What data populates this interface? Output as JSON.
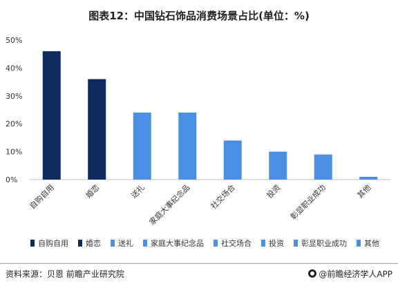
{
  "title": "图表12：中国钻石饰品消费场景占比(单位：%)",
  "colors": {
    "dark": "#0d2b5e",
    "light": "#4a8fe3",
    "axis": "#bfbfbf",
    "text": "#333333"
  },
  "chart_data": {
    "type": "bar",
    "categories": [
      "自购自用",
      "婚恋",
      "送礼",
      "家庭大事纪念品",
      "社交场合",
      "投资",
      "彰显职业成功",
      "其他"
    ],
    "values": [
      46,
      36,
      24,
      24,
      14,
      10,
      9,
      1
    ],
    "series_colors": [
      "#0d2b5e",
      "#0d2b5e",
      "#4a8fe3",
      "#4a8fe3",
      "#4a8fe3",
      "#4a8fe3",
      "#4a8fe3",
      "#4a8fe3"
    ],
    "yticks": [
      "0%",
      "10%",
      "20%",
      "30%",
      "40%",
      "50%"
    ],
    "ylim": [
      0,
      50
    ],
    "grid": false,
    "legend_position": "bottom"
  },
  "footer": {
    "source": "资料来源：贝恩 前瞻产业研究院",
    "brand": "@前瞻经济学人APP"
  }
}
